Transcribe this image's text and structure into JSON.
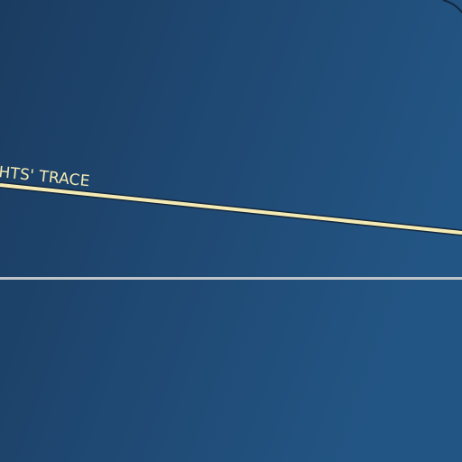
{
  "map": {
    "colors": {
      "water_dark": "#1b3c61",
      "water_light": "#235584",
      "road_fill": "#f4ebb4",
      "road_casing": "#13273e",
      "boundary_line": "#bfc4c8",
      "label_text": "#f4ebb4"
    },
    "roads": [
      {
        "label": "HTS' TRACE"
      }
    ]
  }
}
